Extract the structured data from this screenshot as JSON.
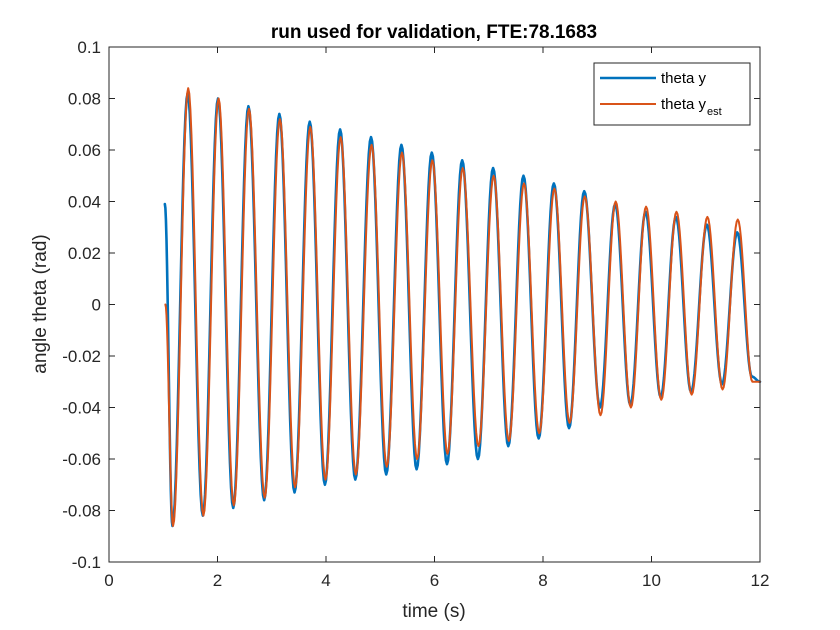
{
  "chart_data": {
    "type": "line",
    "title": "run used for validation, FTE:78.1683",
    "xlabel": "time (s)",
    "ylabel": "angle theta (rad)",
    "xlim": [
      0,
      12
    ],
    "ylim": [
      -0.1,
      0.1
    ],
    "x_ticks": [
      0,
      2,
      4,
      6,
      8,
      10,
      12
    ],
    "x_tick_labels": [
      "0",
      "2",
      "4",
      "6",
      "8",
      "10",
      "12"
    ],
    "y_ticks": [
      -0.1,
      -0.08,
      -0.06,
      -0.04,
      -0.02,
      0,
      0.02,
      0.04,
      0.06,
      0.08,
      0.1
    ],
    "y_tick_labels": [
      "-0.1",
      "-0.08",
      "-0.06",
      "-0.04",
      "-0.02",
      "0",
      "0.02",
      "0.04",
      "0.06",
      "0.08",
      "0.1"
    ],
    "grid": false,
    "legend_position": "top-right",
    "series": [
      {
        "name": "theta y",
        "legend_main": "theta y",
        "legend_sub": "",
        "color": "#0072BD",
        "start": 0.039,
        "extrema_t": [
          1.17,
          1.45,
          1.73,
          2.01,
          2.29,
          2.57,
          2.86,
          3.14,
          3.42,
          3.7,
          3.98,
          4.26,
          4.54,
          4.83,
          5.11,
          5.39,
          5.67,
          5.95,
          6.23,
          6.51,
          6.8,
          7.08,
          7.36,
          7.64,
          7.92,
          8.2,
          8.48,
          8.76,
          9.05,
          9.33,
          9.61,
          9.89,
          10.17,
          10.45,
          10.73,
          11.02,
          11.3,
          11.58,
          11.85
        ],
        "extrema_v": [
          -0.086,
          0.082,
          -0.082,
          0.08,
          -0.079,
          0.077,
          -0.076,
          0.074,
          -0.073,
          0.071,
          -0.07,
          0.068,
          -0.068,
          0.065,
          -0.066,
          0.062,
          -0.064,
          0.059,
          -0.062,
          0.056,
          -0.06,
          0.053,
          -0.055,
          0.05,
          -0.052,
          0.047,
          -0.048,
          0.044,
          -0.04,
          0.039,
          -0.039,
          0.036,
          -0.036,
          0.034,
          -0.034,
          0.031,
          -0.031,
          0.028,
          -0.028
        ],
        "end": [
          12.0,
          -0.03
        ]
      },
      {
        "name": "theta y_est",
        "legend_main": "theta y",
        "legend_sub": "est",
        "color": "#D95319",
        "start": 0.0,
        "extrema_t": [
          1.18,
          1.46,
          1.74,
          2.02,
          2.3,
          2.58,
          2.87,
          3.15,
          3.43,
          3.71,
          3.99,
          4.27,
          4.55,
          4.84,
          5.12,
          5.4,
          5.68,
          5.96,
          6.24,
          6.52,
          6.81,
          7.09,
          7.37,
          7.65,
          7.93,
          8.21,
          8.49,
          8.77,
          9.06,
          9.34,
          9.62,
          9.9,
          10.18,
          10.46,
          10.74,
          11.03,
          11.31,
          11.59,
          11.86
        ],
        "extrema_v": [
          -0.086,
          0.084,
          -0.082,
          0.08,
          -0.078,
          0.076,
          -0.075,
          0.072,
          -0.071,
          0.069,
          -0.068,
          0.065,
          -0.066,
          0.062,
          -0.063,
          0.059,
          -0.06,
          0.056,
          -0.058,
          0.053,
          -0.055,
          0.05,
          -0.053,
          0.047,
          -0.05,
          0.045,
          -0.046,
          0.042,
          -0.043,
          0.04,
          -0.04,
          0.038,
          -0.037,
          0.036,
          -0.035,
          0.034,
          -0.033,
          0.033,
          -0.03
        ],
        "end": [
          12.0,
          -0.03
        ]
      }
    ]
  }
}
